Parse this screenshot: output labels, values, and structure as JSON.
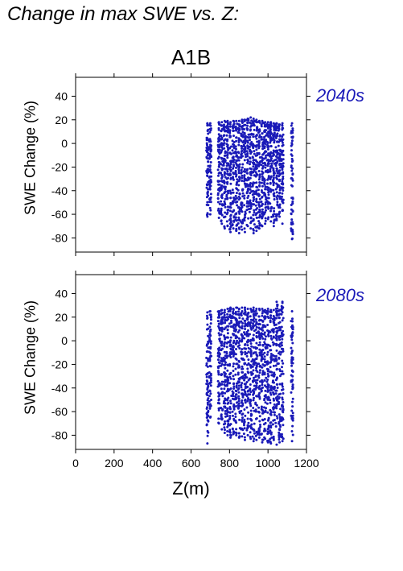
{
  "figure_title": "Change in max SWE vs. Z:",
  "chart_data": [
    {
      "type": "scatter",
      "title": "A1B",
      "subtitle": "2040s",
      "xlabel": "Z(m)",
      "ylabel": "SWE Change (%)",
      "xlim": [
        0,
        1200
      ],
      "ylim": [
        -92,
        56
      ],
      "yticks": [
        40,
        20,
        0,
        -20,
        -40,
        -60,
        -80
      ],
      "xticks": [
        0,
        200,
        400,
        600,
        800,
        1000,
        1200
      ],
      "marker_color": "#1a1ab8",
      "grid": false,
      "columns": [
        {
          "x": 685,
          "ymin": -62,
          "ymax": 17
        },
        {
          "x": 700,
          "ymin": -60,
          "ymax": 17
        },
        {
          "x": 745,
          "ymin": -63,
          "ymax": 18
        },
        {
          "x": 760,
          "ymin": -68,
          "ymax": 18
        },
        {
          "x": 775,
          "ymin": -72,
          "ymax": 19
        },
        {
          "x": 790,
          "ymin": -70,
          "ymax": 19
        },
        {
          "x": 805,
          "ymin": -75,
          "ymax": 18
        },
        {
          "x": 820,
          "ymin": -72,
          "ymax": 19
        },
        {
          "x": 835,
          "ymin": -74,
          "ymax": 19
        },
        {
          "x": 850,
          "ymin": -76,
          "ymax": 19
        },
        {
          "x": 865,
          "ymin": -73,
          "ymax": 20
        },
        {
          "x": 880,
          "ymin": -75,
          "ymax": 20
        },
        {
          "x": 895,
          "ymin": -70,
          "ymax": 21
        },
        {
          "x": 910,
          "ymin": -72,
          "ymax": 22
        },
        {
          "x": 925,
          "ymin": -76,
          "ymax": 21
        },
        {
          "x": 940,
          "ymin": -74,
          "ymax": 20
        },
        {
          "x": 955,
          "ymin": -72,
          "ymax": 19
        },
        {
          "x": 970,
          "ymin": -70,
          "ymax": 19
        },
        {
          "x": 985,
          "ymin": -68,
          "ymax": 18
        },
        {
          "x": 1000,
          "ymin": -64,
          "ymax": 18
        },
        {
          "x": 1015,
          "ymin": -66,
          "ymax": 18
        },
        {
          "x": 1030,
          "ymin": -70,
          "ymax": 17
        },
        {
          "x": 1045,
          "ymin": -65,
          "ymax": 17
        },
        {
          "x": 1060,
          "ymin": -62,
          "ymax": 16
        },
        {
          "x": 1075,
          "ymin": -68,
          "ymax": 17
        },
        {
          "x": 1125,
          "ymin": -81,
          "ymax": 17
        }
      ]
    },
    {
      "type": "scatter",
      "title": "",
      "subtitle": "2080s",
      "xlabel": "Z(m)",
      "ylabel": "SWE Change (%)",
      "xlim": [
        0,
        1200
      ],
      "ylim": [
        -92,
        56
      ],
      "yticks": [
        40,
        20,
        0,
        -20,
        -40,
        -60,
        -80
      ],
      "xticks": [
        0,
        200,
        400,
        600,
        800,
        1000,
        1200
      ],
      "marker_color": "#1a1ab8",
      "grid": false,
      "columns": [
        {
          "x": 685,
          "ymin": -87,
          "ymax": 24
        },
        {
          "x": 700,
          "ymin": -65,
          "ymax": 25
        },
        {
          "x": 745,
          "ymin": -70,
          "ymax": 25
        },
        {
          "x": 760,
          "ymin": -75,
          "ymax": 26
        },
        {
          "x": 775,
          "ymin": -78,
          "ymax": 26
        },
        {
          "x": 790,
          "ymin": -80,
          "ymax": 27
        },
        {
          "x": 805,
          "ymin": -82,
          "ymax": 28
        },
        {
          "x": 820,
          "ymin": -79,
          "ymax": 27
        },
        {
          "x": 835,
          "ymin": -80,
          "ymax": 28
        },
        {
          "x": 850,
          "ymin": -82,
          "ymax": 27
        },
        {
          "x": 865,
          "ymin": -81,
          "ymax": 28
        },
        {
          "x": 880,
          "ymin": -84,
          "ymax": 28
        },
        {
          "x": 895,
          "ymin": -80,
          "ymax": 27
        },
        {
          "x": 910,
          "ymin": -83,
          "ymax": 27
        },
        {
          "x": 925,
          "ymin": -85,
          "ymax": 28
        },
        {
          "x": 940,
          "ymin": -84,
          "ymax": 27
        },
        {
          "x": 955,
          "ymin": -82,
          "ymax": 27
        },
        {
          "x": 970,
          "ymin": -86,
          "ymax": 27
        },
        {
          "x": 985,
          "ymin": -83,
          "ymax": 26
        },
        {
          "x": 1000,
          "ymin": -86,
          "ymax": 27
        },
        {
          "x": 1015,
          "ymin": -87,
          "ymax": 26
        },
        {
          "x": 1030,
          "ymin": -84,
          "ymax": 26
        },
        {
          "x": 1045,
          "ymin": -88,
          "ymax": 33
        },
        {
          "x": 1060,
          "ymin": -86,
          "ymax": 26
        },
        {
          "x": 1075,
          "ymin": -85,
          "ymax": 33
        },
        {
          "x": 1125,
          "ymin": -85,
          "ymax": 25
        }
      ]
    }
  ]
}
